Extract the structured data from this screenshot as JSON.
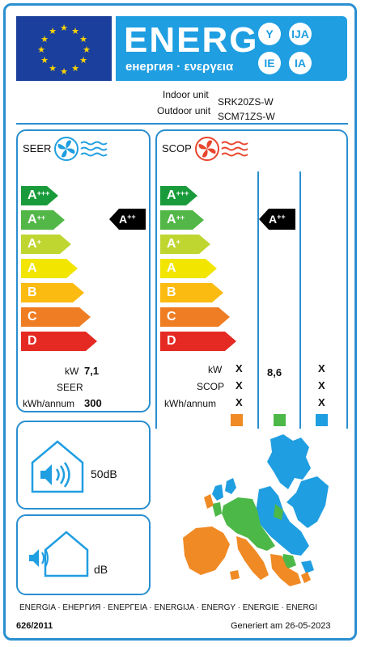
{
  "header": {
    "energy_word": "ENERG",
    "energy_sub": "енергия · ενεργεια",
    "langs": [
      "Y",
      "IJA",
      "IE",
      "IA"
    ]
  },
  "units": {
    "indoor_label": "Indoor unit",
    "indoor_value": "SRK20ZS-W",
    "outdoor_label": "Outdoor unit",
    "outdoor_value": "SCM71ZS-W"
  },
  "scale": [
    {
      "letter": "A",
      "sup": "+++",
      "color": "#1a9b3b"
    },
    {
      "letter": "A",
      "sup": "++",
      "color": "#52b747"
    },
    {
      "letter": "A",
      "sup": "+",
      "color": "#bfd631"
    },
    {
      "letter": "A",
      "sup": "",
      "color": "#f2e500"
    },
    {
      "letter": "B",
      "sup": "",
      "color": "#fbbb10"
    },
    {
      "letter": "C",
      "sup": "",
      "color": "#ef7d23"
    },
    {
      "letter": "D",
      "sup": "",
      "color": "#e52a24"
    }
  ],
  "seer": {
    "title": "SEER",
    "rating_letter": "A",
    "rating_sup": "++",
    "kw_label": "kW",
    "kw_value": "7,1",
    "seer_label": "SEER",
    "kwh_label": "kWh/annum",
    "kwh_value": "300"
  },
  "scop": {
    "title": "SCOP",
    "rating_letter": "A",
    "rating_sup": "++",
    "kw_label": "kW",
    "scop_label": "SCOP",
    "kwh_label": "kWh/annum",
    "col1": {
      "kw": "X",
      "scop": "X",
      "kwh": "X",
      "color": "#f08a24"
    },
    "col2": {
      "scop": "8,6",
      "color": "#4cb848"
    },
    "col3": {
      "kw": "X",
      "scop": "X",
      "kwh": "X",
      "color": "#1f9ee1"
    }
  },
  "noise": {
    "indoor_value": "50dB",
    "outdoor_value": "dB"
  },
  "footer": {
    "languages": "ENERGIA · ЕНЕРГИЯ · ΕΝΕΡΓΕΙΑ · ENERGIJA · ENERGY · ENERGIE · ENERGI",
    "regulation": "626/2011",
    "generated": "Generiert am 26-05-2023"
  }
}
